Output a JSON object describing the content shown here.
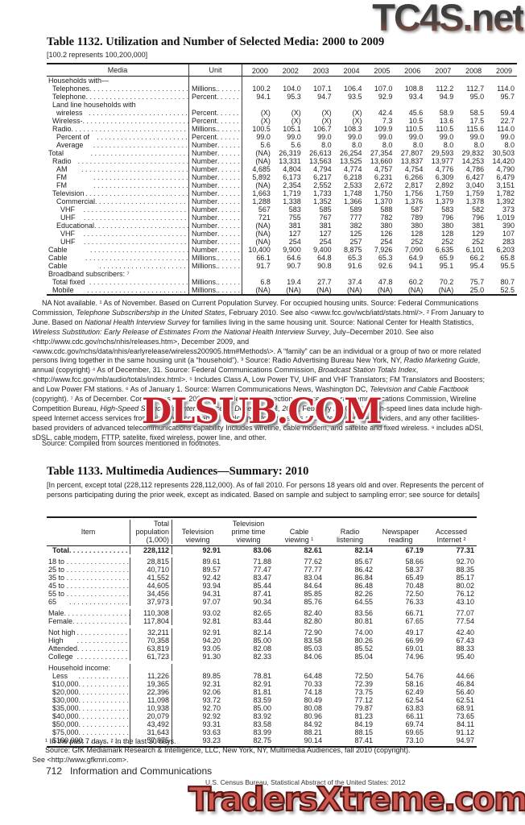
{
  "watermarks": {
    "top": "TC4S.net",
    "middle": "DLSUB.COM",
    "bottom": "TradersXtreme.com"
  },
  "table1132": {
    "title": "Table 1132. Utilization and Number of Selected Media: 2000 to 2009",
    "note": "[100.2 represents 100,200,000]",
    "headers": {
      "media": "Media",
      "unit": "Unit",
      "years": [
        "2000",
        "2002",
        "2003",
        "2004",
        "2005",
        "2006",
        "2007",
        "2008",
        "2009"
      ]
    },
    "rows": [
      {
        "label": "Households with—",
        "indent": 0,
        "unit": "",
        "values": []
      },
      {
        "label": "Telephones ¹",
        "indent": 1,
        "unit": "Millions.",
        "values": [
          "100.2",
          "104.0",
          "107.1",
          "106.4",
          "107.0",
          "108.8",
          "112.2",
          "112.7",
          "114.0"
        ]
      },
      {
        "label": "Telephone service ¹",
        "indent": 1,
        "unit": "Percent",
        "values": [
          "94.1",
          "95.3",
          "94.7",
          "93.5",
          "92.9",
          "93.4",
          "94.9",
          "95.0",
          "95.7"
        ]
      },
      {
        "label": "Land line households with",
        "indent": 1,
        "unit": "",
        "values": []
      },
      {
        "label": "wireless telephone ²",
        "indent": 2,
        "unit": "Percent",
        "values": [
          "(X)",
          "(X)",
          "(X)",
          "(X)",
          "42.4",
          "45.6",
          "58.9",
          "58.5",
          "59.4"
        ]
      },
      {
        "label": "Wireless-only ²",
        "indent": 1,
        "unit": "Percent",
        "values": [
          "(X)",
          "(X)",
          "(X)",
          "(X)",
          "7.3",
          "10.5",
          "13.6",
          "17.5",
          "22.7"
        ]
      },
      {
        "label": "Radio ³",
        "indent": 1,
        "unit": "Millions.",
        "values": [
          "100.5",
          "105.1",
          "106.7",
          "108.3",
          "109.9",
          "110.5",
          "110.5",
          "115.6",
          "114.0"
        ]
      },
      {
        "label": "Percent of total households",
        "indent": 2,
        "unit": "Percent",
        "values": [
          "99.0",
          "99.0",
          "99.0",
          "99.0",
          "99.0",
          "99.0",
          "99.0",
          "99.0",
          "99.0"
        ]
      },
      {
        "label": "Average number of sets",
        "indent": 2,
        "unit": "Number",
        "values": [
          "5.6",
          "5.6",
          "8.0",
          "8.0",
          "8.0",
          "8.0",
          "8.0",
          "8.0",
          "8.0"
        ]
      },
      {
        "label": "Total broadcast stations ⁴ ⁵",
        "indent": 0,
        "unit": "Number",
        "values": [
          "(NA)",
          "26,319",
          "26,613",
          "26,254",
          "27,354",
          "27,807",
          "29,593",
          "29,832",
          "30,503"
        ]
      },
      {
        "label": "Radio stations",
        "indent": 1,
        "unit": "Number",
        "values": [
          "(NA)",
          "13,331",
          "13,563",
          "13,525",
          "13,660",
          "13,837",
          "13,977",
          "14,253",
          "14,420"
        ]
      },
      {
        "label": "AM stations",
        "indent": 2,
        "unit": "Number",
        "values": [
          "4,685",
          "4,804",
          "4,794",
          "4,774",
          "4,757",
          "4,754",
          "4,776",
          "4,786",
          "4,790"
        ]
      },
      {
        "label": "FM commercial",
        "indent": 2,
        "unit": "Number",
        "values": [
          "5,892",
          "6,173",
          "6,217",
          "6,218",
          "6,231",
          "6,266",
          "6,309",
          "6,427",
          "6,479"
        ]
      },
      {
        "label": "FM educational",
        "indent": 2,
        "unit": "Number",
        "values": [
          "(NA)",
          "2,354",
          "2,552",
          "2,533",
          "2,672",
          "2,817",
          "2,892",
          "3,040",
          "3,151"
        ]
      },
      {
        "label": "Television stations ⁴",
        "indent": 1,
        "unit": "Number",
        "values": [
          "1,663",
          "1,719",
          "1,733",
          "1,748",
          "1,750",
          "1,756",
          "1,759",
          "1,759",
          "1,782"
        ]
      },
      {
        "label": "Commercial",
        "indent": 2,
        "unit": "Number",
        "values": [
          "1,288",
          "1,338",
          "1,352",
          "1,366",
          "1,370",
          "1,376",
          "1,379",
          "1,378",
          "1,392"
        ]
      },
      {
        "label": "VHF TV band",
        "indent": 3,
        "unit": "Number",
        "values": [
          "567",
          "583",
          "585",
          "589",
          "588",
          "587",
          "583",
          "582",
          "373"
        ]
      },
      {
        "label": "UHF TV band",
        "indent": 3,
        "unit": "Number",
        "values": [
          "721",
          "755",
          "767",
          "777",
          "782",
          "789",
          "796",
          "796",
          "1,019"
        ]
      },
      {
        "label": "Educational",
        "indent": 2,
        "unit": "Number",
        "values": [
          "(NA)",
          "381",
          "381",
          "382",
          "380",
          "380",
          "380",
          "381",
          "390"
        ]
      },
      {
        "label": "VHF TV band",
        "indent": 3,
        "unit": "Number",
        "values": [
          "(NA)",
          "127",
          "127",
          "125",
          "126",
          "128",
          "128",
          "129",
          "107"
        ]
      },
      {
        "label": "UHF TV band",
        "indent": 3,
        "unit": "Number",
        "values": [
          "(NA)",
          "254",
          "254",
          "257",
          "254",
          "252",
          "252",
          "252",
          "283"
        ]
      },
      {
        "label": "Cable television systems ⁶",
        "indent": 0,
        "unit": "Number",
        "values": [
          "10,400",
          "9,900",
          "9,400",
          "8,875",
          "7,926",
          "7,090",
          "6,635",
          "6,101",
          "6,203"
        ]
      },
      {
        "label": "Cable subscribers",
        "indent": 0,
        "unit": "Millions.",
        "values": [
          "66.1",
          "64.6",
          "64.8",
          "65.3",
          "65.3",
          "64.9",
          "65.9",
          "66.2",
          "65.8"
        ]
      },
      {
        "label": "Cable availability (passed by cable)",
        "indent": 0,
        "unit": "Millions.",
        "values": [
          "91.7",
          "90.7",
          "90.8",
          "91.6",
          "92.6",
          "94.1",
          "95.1",
          "95.4",
          "95.5"
        ]
      },
      {
        "label": "Broadband subscribers: ⁷",
        "indent": 0,
        "unit": "",
        "values": []
      },
      {
        "label": "Total fixed broadband ⁸",
        "indent": 1,
        "unit": "Millions.",
        "values": [
          "6.8",
          "19.4",
          "27.7",
          "37.4",
          "47.8",
          "60.2",
          "70.2",
          "75.7",
          "80.7"
        ]
      },
      {
        "label": "Mobile broadband",
        "indent": 1,
        "unit": "Millions.",
        "values": [
          "(NA)",
          "(NA)",
          "(NA)",
          "(NA)",
          "(NA)",
          "(NA)",
          "(NA)",
          "25.0",
          "52.5"
        ]
      }
    ],
    "footnote_runs": [
      {
        "t": "NA Not available. ¹ As of November. Based on Current Population Survey. For occupied housing units. Source: Federal Communications Commission, "
      },
      {
        "t": "Telephone Subscribership in the United States",
        "i": true
      },
      {
        "t": ", February 2010. See also <www.fcc.gov/wcb/iatd/stats.html/>. ² From January to June. Based on "
      },
      {
        "t": "National Health Interview Survey",
        "i": true
      },
      {
        "t": " for families living in the same housing unit. Source: National Center for Health Statistics, "
      },
      {
        "t": "Wireless Substitution: Early Release of Estimates From the National Health Interview Survey",
        "i": true
      },
      {
        "t": ", July–December 2010. See also <http://www.cdc.gov/nchs/nhis/releases.htm>, December 2009, and <www.cdc.gov/nchs/data/nhis/earlyrelease/wireless200905.htm#Methods\\>. A “family” can be an individual or a group of two or more related persons living together in the same housing unit (a “household”). ³ Source:  Radio Advertising Bureau New York, NY, "
      },
      {
        "t": "Radio Marketing Guide",
        "i": true
      },
      {
        "t": ", annual (copyright) ⁴ As of December, 31. Source: Federal Communications Commission, "
      },
      {
        "t": "Broadcast Station Totals Index",
        "i": true
      },
      {
        "t": ", <http://www.fcc.gov/mb/audio/totals/index.html>. ⁵ Includes Class A, Low Power TV, UHF and VHF Translators; FM Translators and Boosters; and Low Power FM stations. ⁶ As of January 1. Source: Warren Communications News, Washington DC, "
      },
      {
        "t": "Television and Cable Factbook",
        "i": true
      },
      {
        "t": " (copyright). ⁷ As of December. Connections over 200kbps in at least one direction. Source: Federal Communications Commission, Wireline Competition Bureau, "
      },
      {
        "t": "High-Speed Services for Internet Access: December 31, 2008",
        "i": true
      },
      {
        "t": ", February 2010. FCC high-speed lines data include high-speed Internet access services from telephone companies, cable operators, wireless and satellite service providers, and any other facilities-based providers of advanced telecommunications capability Includes wireline, cable modem, and satelite and fixed wireless. ⁸ includes aDSI, sDSL, cable modem, FTTP, satelite, fixed wireless, power line, and other."
      }
    ],
    "source": "Source: Compiled from sources mentioned in footnotes."
  },
  "table1133": {
    "title": "Table 1133. Multimedia Audiences—Summary: 2010",
    "note": "[In percent, except total (228,112 represents 228,112,000). As of fall 2010. For persons 18 years old and over. Represents the percent of persons participating during the prior week, except as indicated. Based on sample and subject to sampling error; see source for details]",
    "columns": [
      "Item",
      "Total\npopulation\n(1,000)",
      "Television\nviewing",
      "Television\nprime time\nviewing",
      "Cable\nviewing ¹",
      "Radio\nlistening",
      "Newspaper\nreading",
      "Accessed\nInternet ²"
    ],
    "total_row": {
      "label": "Total",
      "values": [
        "228,112",
        "92.91",
        "83.06",
        "82.61",
        "82.14",
        "67.19",
        "77.31"
      ]
    },
    "groups": [
      {
        "rows": [
          {
            "label": "18 to 24 years old",
            "values": [
              "28,815",
              "89.61",
              "71.88",
              "77.62",
              "85.67",
              "58.66",
              "92.70"
            ]
          },
          {
            "label": "25 to 34 years old",
            "values": [
              "40,710",
              "89.57",
              "77.47",
              "77.77",
              "86.42",
              "58.37",
              "88.35"
            ]
          },
          {
            "label": "35 to 44 years old",
            "values": [
              "41,552",
              "92.42",
              "83.47",
              "83.04",
              "86.84",
              "65.49",
              "85.17"
            ]
          },
          {
            "label": "45 to 54 years old",
            "values": [
              "44,605",
              "93.94",
              "85.44",
              "84.64",
              "86.48",
              "70.48",
              "80.02"
            ]
          },
          {
            "label": "55 to 64 years old",
            "values": [
              "34,456",
              "94.31",
              "87.41",
              "85.85",
              "82.26",
              "72.50",
              "76.12"
            ]
          },
          {
            "label": "65 years old and over",
            "values": [
              "37,973",
              "97.07",
              "90.34",
              "85.76",
              "64.55",
              "76.33",
              "43.10"
            ]
          }
        ]
      },
      {
        "rows": [
          {
            "label": "Male",
            "values": [
              "110,308",
              "93.02",
              "82.65",
              "82.40",
              "83.56",
              "66.71",
              "77.07"
            ]
          },
          {
            "label": "Female",
            "values": [
              "117,804",
              "92.81",
              "83.44",
              "82.80",
              "80.81",
              "67.65",
              "77.54"
            ]
          }
        ]
      },
      {
        "rows": [
          {
            "label": "Not high school graduate",
            "values": [
              "32,211",
              "92.91",
              "82.14",
              "72.90",
              "74.00",
              "49.17",
              "42.40"
            ]
          },
          {
            "label": "High school graduate",
            "values": [
              "70,358",
              "94.20",
              "85.00",
              "83.58",
              "80.26",
              "66.99",
              "67.43"
            ]
          },
          {
            "label": "Attended college",
            "values": [
              "63,819",
              "93.05",
              "82.08",
              "85.03",
              "85.52",
              "69.01",
              "88.33"
            ]
          },
          {
            "label": "College graduate",
            "values": [
              "61,723",
              "91.30",
              "82.33",
              "84.06",
              "85.04",
              "74.96",
              "95.40"
            ]
          }
        ]
      },
      {
        "header": "Household income:",
        "rows": [
          {
            "label": "Less than $10,000",
            "values": [
              "11,226",
              "89.85",
              "78.81",
              "64.48",
              "72.50",
              "54.76",
              "44.66"
            ]
          },
          {
            "label": "$10,000 to $19,999",
            "values": [
              "19,365",
              "92.31",
              "82.91",
              "70.33",
              "72.39",
              "58.16",
              "46.84"
            ]
          },
          {
            "label": "$20,000 to $29,999",
            "values": [
              "22,396",
              "92.06",
              "81.81",
              "74.18",
              "73.75",
              "62.49",
              "56.40"
            ]
          },
          {
            "label": "$30,000 to $34,999",
            "values": [
              "11,098",
              "93.72",
              "83.59",
              "80.49",
              "77.12",
              "62.54",
              "62.51"
            ]
          },
          {
            "label": "$35,000 to $39,999",
            "values": [
              "10,938",
              "92.70",
              "85.00",
              "80.08",
              "79.87",
              "63.83",
              "68.91"
            ]
          },
          {
            "label": "$40,000 to $49,999",
            "values": [
              "20,079",
              "92.92",
              "83.92",
              "80.96",
              "81.23",
              "66.11",
              "73.65"
            ]
          },
          {
            "label": "$50,000 to $74,999",
            "values": [
              "43,492",
              "93.31",
              "83.58",
              "84.92",
              "84.19",
              "69.74",
              "84.11"
            ]
          },
          {
            "label": "$75,000 to $99,999",
            "values": [
              "31,643",
              "93.63",
              "83.99",
              "88.21",
              "88.15",
              "69.65",
              "91.12"
            ]
          },
          {
            "label": "$100,000 or more",
            "values": [
              "57,875",
              "93.23",
              "82.75",
              "90.14",
              "87.41",
              "73.10",
              "94.97"
            ]
          }
        ]
      }
    ],
    "footnote": "¹ In the past 7 days. ² In the last 30 days.",
    "source": "Source: GfK Mediamark Research & Intelligence, LLC, New York, NY, Multimedia Audiences, fall 2010 (copyright).",
    "source2": "See <http://www.gfkmri.com>."
  },
  "footer": {
    "page_number": "712",
    "section": "Information and Communications",
    "publication": "U.S. Census Bureau, Statistical Abstract of the United States: 2012"
  },
  "colors": {
    "watermark_red": "#c4232b",
    "watermark_bottom_red": "#cd574f",
    "text": "#1b1b1b"
  }
}
